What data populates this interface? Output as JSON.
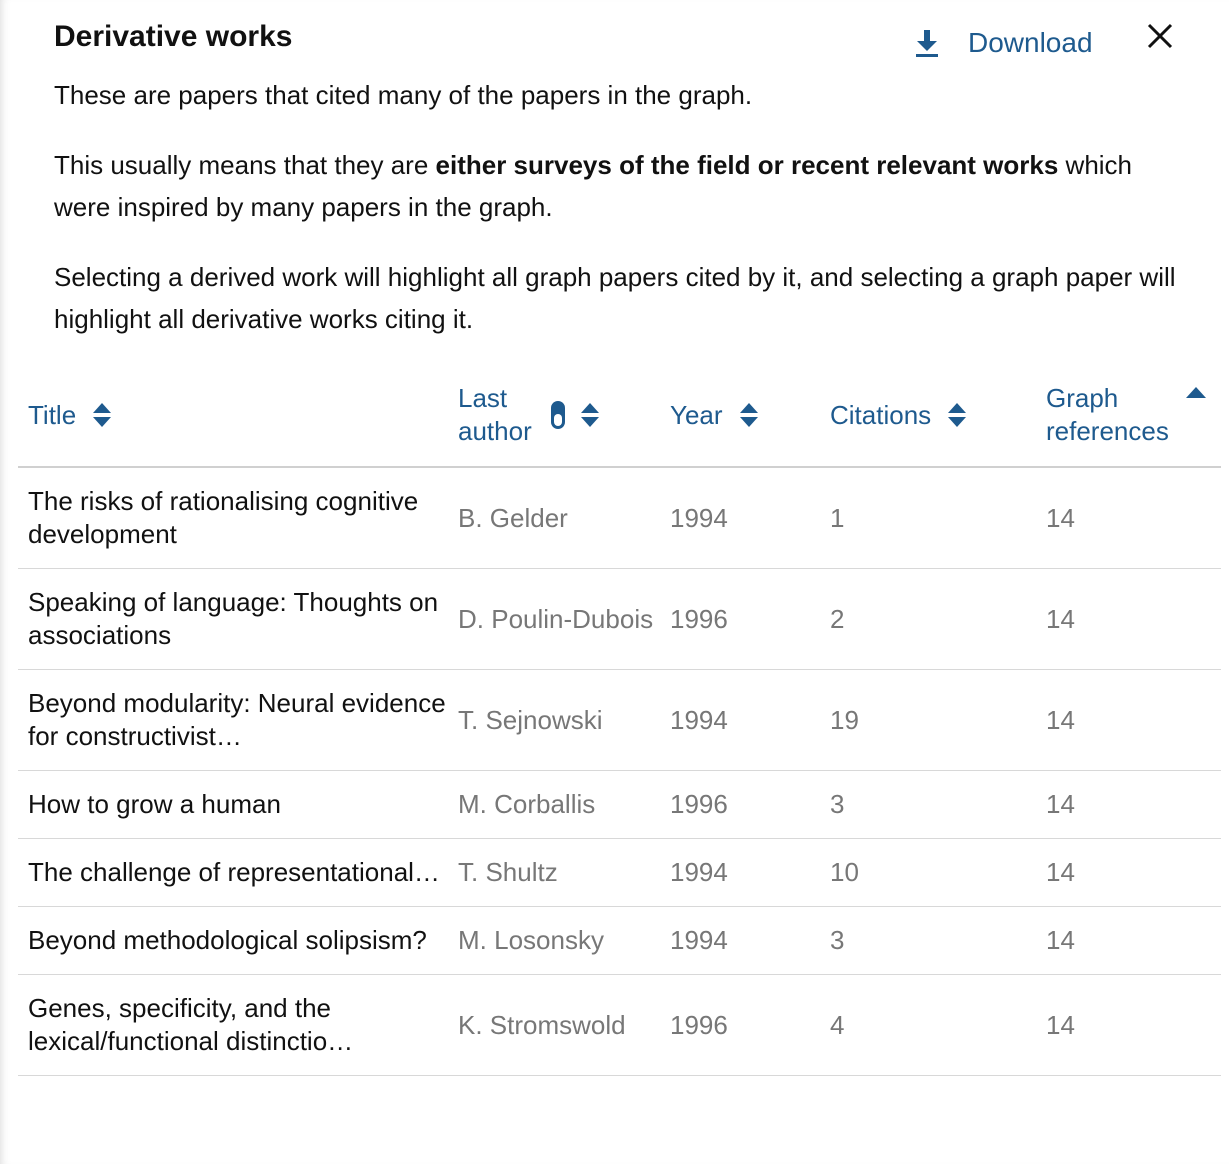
{
  "panel": {
    "title": "Derivative works",
    "download_label": "Download",
    "description": {
      "p1": "These are papers that cited many of the papers in the graph.",
      "p2_before": "This usually means that they are ",
      "p2_bold": "either surveys of the field or recent relevant works",
      "p2_after": " which were inspired by many papers in the graph.",
      "p3": "Selecting a derived work will highlight all graph papers cited by it, and selecting a graph paper will highlight all derivative works citing it."
    }
  },
  "table": {
    "columns": {
      "title": "Title",
      "last_author_line1": "Last",
      "last_author_line2": "author",
      "year": "Year",
      "citations": "Citations",
      "graph_refs_line1": "Graph",
      "graph_refs_line2": "references"
    },
    "rows": [
      {
        "title": "The risks of rationalising cognitive development",
        "author": "B. Gelder",
        "year": "1994",
        "citations": "1",
        "graph_refs": "14"
      },
      {
        "title": "Speaking of language: Thoughts on associations",
        "author": "D. Poulin-Dubois",
        "year": "1996",
        "citations": "2",
        "graph_refs": "14"
      },
      {
        "title": "Beyond modularity: Neural evidence for constructivist…",
        "author": "T. Sejnowski",
        "year": "1994",
        "citations": "19",
        "graph_refs": "14"
      },
      {
        "title": "How to grow a human",
        "author": "M. Corballis",
        "year": "1996",
        "citations": "3",
        "graph_refs": "14"
      },
      {
        "title": "The challenge of representational…",
        "author": "T. Shultz",
        "year": "1994",
        "citations": "10",
        "graph_refs": "14"
      },
      {
        "title": "Beyond methodological solipsism?",
        "author": "M. Losonsky",
        "year": "1994",
        "citations": "3",
        "graph_refs": "14"
      },
      {
        "title": "Genes, specificity, and the lexical/functional distinctio…",
        "author": "K. Stromswold",
        "year": "1996",
        "citations": "4",
        "graph_refs": "14"
      }
    ]
  },
  "colors": {
    "accent": "#1e5a8e",
    "text": "#111111",
    "muted": "#777777",
    "divider": "#d8d8d8"
  },
  "icons": {
    "download": "download-icon",
    "close": "close-icon",
    "sort": "sort-icon",
    "sort_ascending": "sort-ascending-icon",
    "author_toggle": "pill-toggle-icon"
  }
}
